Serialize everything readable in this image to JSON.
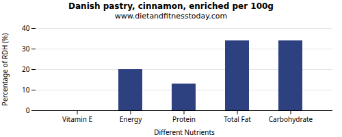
{
  "chart_data": {
    "type": "bar",
    "title": "Danish pastry, cinnamon, enriched per 100g",
    "subtitle": "www.dietandfitnesstoday.com",
    "categories": [
      "Vitamin E",
      "Energy",
      "Protein",
      "Total Fat",
      "Carbohydrate"
    ],
    "values": [
      0,
      20,
      13,
      34,
      34
    ],
    "color": "#2d4080",
    "xlabel": "Different Nutrients",
    "ylabel": "Percentage of RDH (%)",
    "ylim": [
      0,
      40
    ],
    "yticks": [
      0,
      10,
      20,
      30,
      40
    ],
    "grid": true
  }
}
